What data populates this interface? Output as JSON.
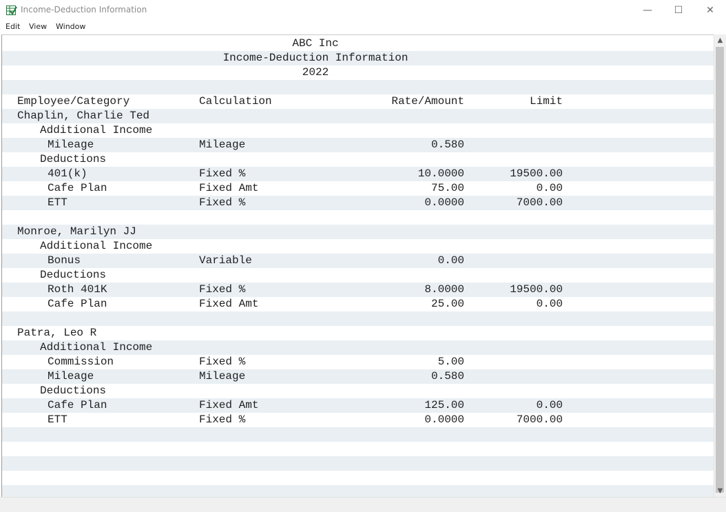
{
  "window": {
    "title": "Income-Deduction Information",
    "controls": {
      "minimize": "—",
      "maximize": "☐",
      "close": "✕"
    }
  },
  "menu": [
    "Edit",
    "View",
    "Window"
  ],
  "report": {
    "company": "ABC Inc",
    "title": "Income-Deduction Information",
    "year": "2022",
    "headers": {
      "category": "Employee/Category",
      "calc": "Calculation",
      "rate": "Rate/Amount",
      "limit": "Limit"
    },
    "employees": [
      {
        "name": "Chaplin, Charlie Ted",
        "income_label": "Additional Income",
        "income": [
          {
            "item": "Mileage",
            "calc": "Mileage",
            "rate": "0.580",
            "limit": ""
          }
        ],
        "deductions_label": "Deductions",
        "deductions": [
          {
            "item": "401(k)",
            "calc": "Fixed %",
            "rate": "10.0000",
            "limit": "19500.00"
          },
          {
            "item": "Cafe Plan",
            "calc": "Fixed Amt",
            "rate": "75.00",
            "limit": "0.00"
          },
          {
            "item": "ETT",
            "calc": "Fixed %",
            "rate": "0.0000",
            "limit": "7000.00"
          }
        ]
      },
      {
        "name": "Monroe, Marilyn JJ",
        "income_label": "Additional Income",
        "income": [
          {
            "item": "Bonus",
            "calc": "Variable",
            "rate": "0.00",
            "limit": ""
          }
        ],
        "deductions_label": "Deductions",
        "deductions": [
          {
            "item": "Roth 401K",
            "calc": "Fixed %",
            "rate": "8.0000",
            "limit": "19500.00"
          },
          {
            "item": "Cafe Plan",
            "calc": "Fixed Amt",
            "rate": "25.00",
            "limit": "0.00"
          }
        ]
      },
      {
        "name": "Patra, Leo R",
        "income_label": "Additional Income",
        "income": [
          {
            "item": "Commission",
            "calc": "Fixed %",
            "rate": "5.00",
            "limit": ""
          },
          {
            "item": "Mileage",
            "calc": "Mileage",
            "rate": "0.580",
            "limit": ""
          }
        ],
        "deductions_label": "Deductions",
        "deductions": [
          {
            "item": "Cafe Plan",
            "calc": "Fixed Amt",
            "rate": "125.00",
            "limit": "0.00"
          },
          {
            "item": "ETT",
            "calc": "Fixed %",
            "rate": "0.0000",
            "limit": "7000.00"
          }
        ]
      }
    ]
  },
  "colors": {
    "band": "#e9eff3",
    "text": "#222222",
    "title_text": "#8a8a8a"
  },
  "icons": {
    "app": "spreadsheet-check-icon",
    "scroll_up": "chevron-up-icon",
    "scroll_down": "chevron-down-icon"
  }
}
